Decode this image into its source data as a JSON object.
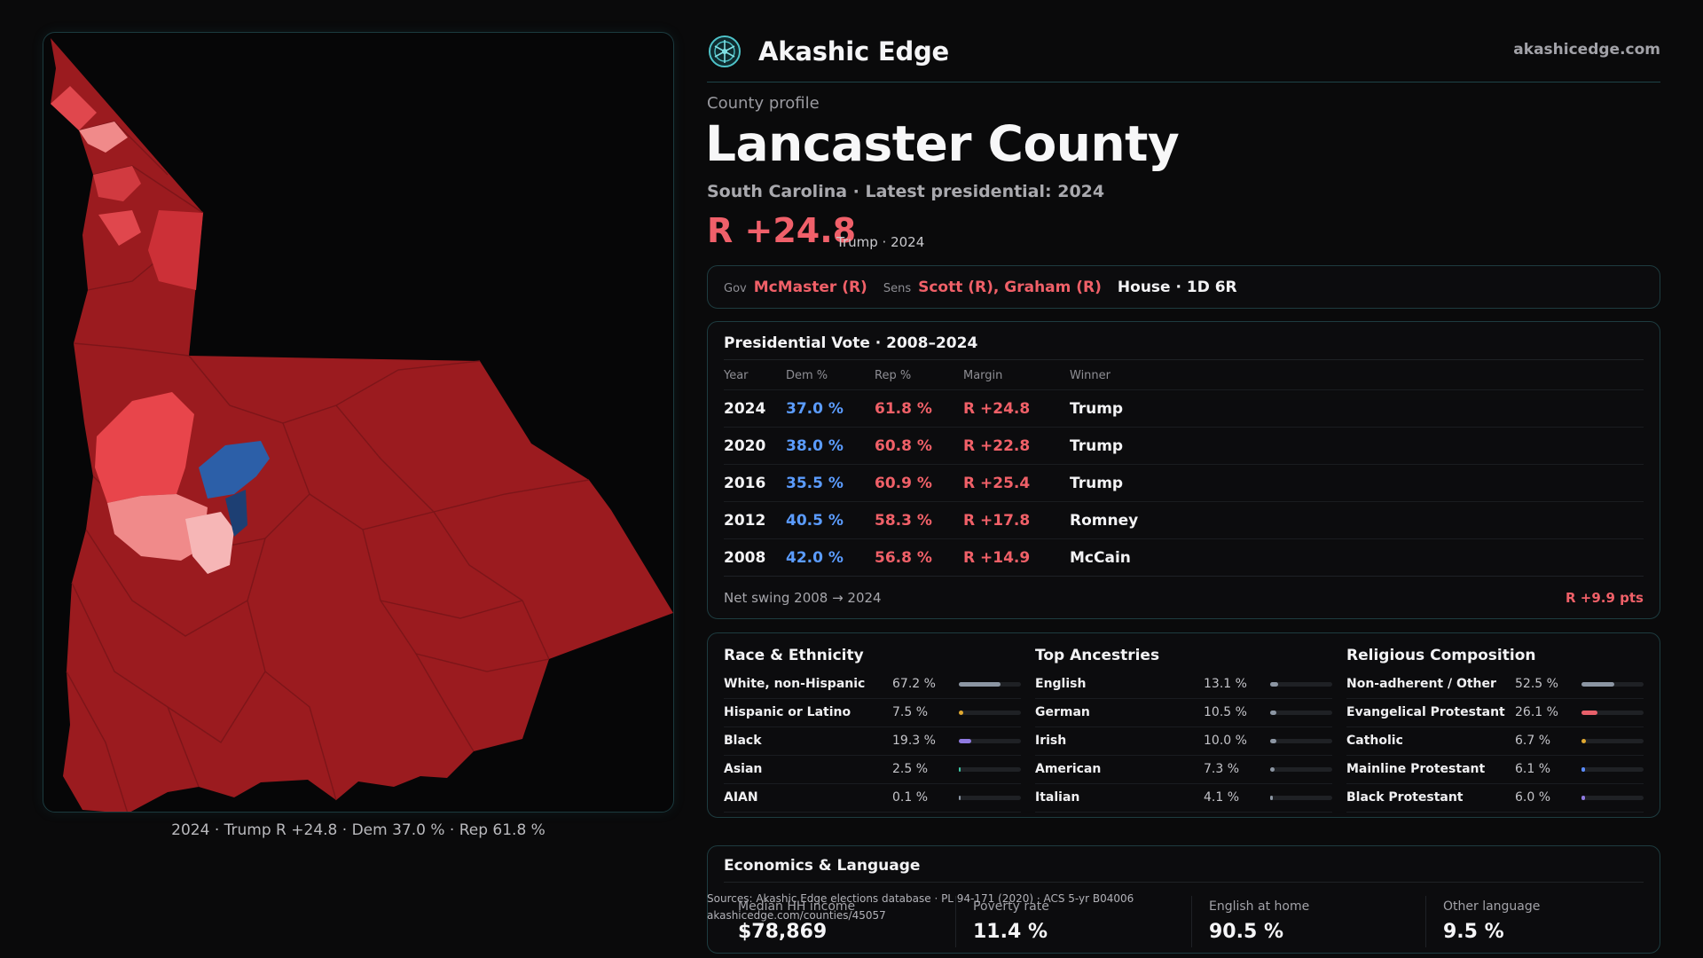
{
  "brand": {
    "name": "Akashic Edge",
    "url": "akashicedge.com"
  },
  "profile": {
    "eyebrow": "County profile",
    "title": "Lancaster County",
    "subtitle": "South Carolina · Latest presidential: 2024",
    "margin": "R +24.8",
    "margin_note": "Trump · 2024"
  },
  "officials": {
    "gov_label": "Gov",
    "gov": "McMaster (R)",
    "sens_label": "Sens",
    "sens": "Scott (R), Graham (R)",
    "house": "House · 1D 6R"
  },
  "presidential": {
    "title": "Presidential Vote · 2008–2024",
    "headers": [
      "Year",
      "Dem %",
      "Rep %",
      "Margin",
      "Winner"
    ],
    "rows": [
      [
        "2024",
        "37.0 %",
        "61.8 %",
        "R +24.8",
        "Trump"
      ],
      [
        "2020",
        "38.0 %",
        "60.8 %",
        "R +22.8",
        "Trump"
      ],
      [
        "2016",
        "35.5 %",
        "60.9 %",
        "R +25.4",
        "Trump"
      ],
      [
        "2012",
        "40.5 %",
        "58.3 %",
        "R +17.8",
        "Romney"
      ],
      [
        "2008",
        "42.0 %",
        "56.8 %",
        "R +14.9",
        "McCain"
      ]
    ],
    "swing_label": "Net swing 2008 → 2024",
    "swing_value": "R +9.9 pts"
  },
  "demographics": [
    {
      "title": "Race & Ethnicity",
      "items": [
        {
          "label": "White, non-Hispanic",
          "pct": "67.2 %",
          "share": 0.672,
          "color": "#8c96a3"
        },
        {
          "label": "Hispanic or Latino",
          "pct": "7.5 %",
          "share": 0.075,
          "color": "#e0a830"
        },
        {
          "label": "Black",
          "pct": "19.3 %",
          "share": 0.193,
          "color": "#8f7ae0"
        },
        {
          "label": "Asian",
          "pct": "2.5 %",
          "share": 0.025,
          "color": "#3fc7a4"
        },
        {
          "label": "AIAN",
          "pct": "0.1 %",
          "share": 0.001,
          "color": "#8c96a3"
        }
      ]
    },
    {
      "title": "Top Ancestries",
      "items": [
        {
          "label": "English",
          "pct": "13.1 %",
          "share": 0.131,
          "color": "#8c96a3"
        },
        {
          "label": "German",
          "pct": "10.5 %",
          "share": 0.105,
          "color": "#8c96a3"
        },
        {
          "label": "Irish",
          "pct": "10.0 %",
          "share": 0.1,
          "color": "#8c96a3"
        },
        {
          "label": "American",
          "pct": "7.3 %",
          "share": 0.073,
          "color": "#8c96a3"
        },
        {
          "label": "Italian",
          "pct": "4.1 %",
          "share": 0.041,
          "color": "#8c96a3"
        }
      ]
    },
    {
      "title": "Religious Composition",
      "items": [
        {
          "label": "Non-adherent / Other",
          "pct": "52.5 %",
          "share": 0.525,
          "color": "#8c96a3"
        },
        {
          "label": "Evangelical Protestant",
          "pct": "26.1 %",
          "share": 0.261,
          "color": "#e8606a"
        },
        {
          "label": "Catholic",
          "pct": "6.7 %",
          "share": 0.067,
          "color": "#e0a830"
        },
        {
          "label": "Mainline Protestant",
          "pct": "6.1 %",
          "share": 0.061,
          "color": "#5b8cff"
        },
        {
          "label": "Black Protestant",
          "pct": "6.0 %",
          "share": 0.06,
          "color": "#8f7ae0"
        }
      ]
    }
  ],
  "economics": {
    "title": "Economics & Language",
    "items": [
      {
        "label": "Median HH income",
        "value": "$78,869"
      },
      {
        "label": "Poverty rate",
        "value": "11.4 %"
      },
      {
        "label": "English at home",
        "value": "90.5 %"
      },
      {
        "label": "Other language",
        "value": "9.5 %"
      }
    ]
  },
  "sources": {
    "line1": "Sources: Akashic Edge elections database · PL 94-171 (2020) · ACS 5-yr B04006",
    "line2": "akashicedge.com/counties/45057"
  },
  "map": {
    "caption": "2024 · Trump R +24.8 · Dem 37.0 % · Rep 61.8 %",
    "colors": {
      "base": "#9b1b1f",
      "mid": "#c0282e",
      "light_red": "#e8454b",
      "pink": "#f08a8a",
      "pale_pink": "#f6b6b6",
      "blue": "#2c5fa8",
      "dark_blue": "#1d3f73"
    }
  }
}
